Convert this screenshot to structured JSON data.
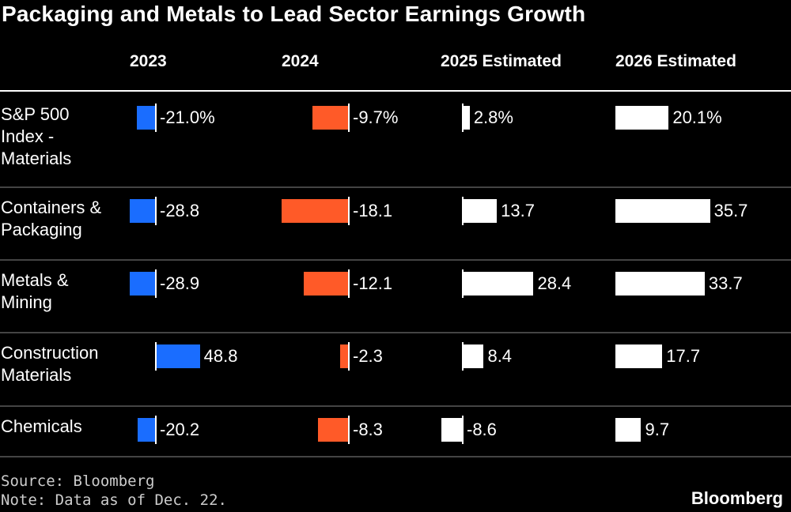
{
  "title": "Packaging and Metals to Lead Sector Earnings Growth",
  "chart_data": {
    "type": "bar",
    "orientation": "horizontal",
    "title": "Packaging and Metals to Lead Sector Earnings Growth",
    "categories": [
      "S&P 500 Index - Materials",
      "Containers & Packaging",
      "Metals & Mining",
      "Construction Materials",
      "Chemicals"
    ],
    "series": [
      {
        "name": "2023",
        "color": "#1a6dff",
        "values": [
          -21.0,
          -28.8,
          -28.9,
          48.8,
          -20.2
        ],
        "labels": [
          "-21.0%",
          "-28.8",
          "-28.9",
          "48.8",
          "-20.2"
        ]
      },
      {
        "name": "2024",
        "color": "#ff5a28",
        "values": [
          -9.7,
          -18.1,
          -12.1,
          -2.3,
          -8.3
        ],
        "labels": [
          "-9.7%",
          "-18.1",
          "-12.1",
          "-2.3",
          "-8.3"
        ]
      },
      {
        "name": "2025 Estimated",
        "color": "#ffffff",
        "values": [
          2.8,
          13.7,
          28.4,
          8.4,
          -8.6
        ],
        "labels": [
          "2.8%",
          "13.7",
          "28.4",
          "8.4",
          "-8.6"
        ]
      },
      {
        "name": "2026 Estimated",
        "color": "#ffffff",
        "values": [
          20.1,
          35.7,
          33.7,
          17.7,
          9.7
        ],
        "labels": [
          "20.1%",
          "35.7",
          "33.7",
          "17.7",
          "9.7"
        ]
      }
    ]
  },
  "row_labels": [
    [
      "S&P 500",
      "Index -",
      "Materials"
    ],
    [
      "Containers &",
      "Packaging"
    ],
    [
      "Metals &",
      "Mining"
    ],
    [
      "Construction",
      "Materials"
    ],
    [
      "Chemicals"
    ]
  ],
  "footer": {
    "source": "Source: Bloomberg",
    "note": "Note: Data as of Dec. 22."
  },
  "logo": "Bloomberg"
}
